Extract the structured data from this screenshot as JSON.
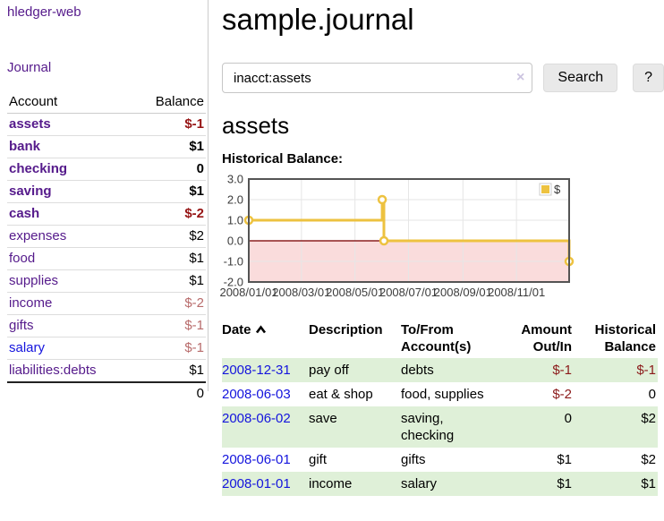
{
  "app": {
    "brand": "hledger-web",
    "nav": {
      "journal": "Journal"
    }
  },
  "sidebar": {
    "headers": {
      "account": "Account",
      "balance": "Balance"
    },
    "rows": [
      {
        "name": "assets",
        "balance": "$-1",
        "depth": 1,
        "bold": true,
        "neg": "strong",
        "link": "purple"
      },
      {
        "name": "bank",
        "balance": "$1",
        "depth": 2,
        "bold": true,
        "neg": "none",
        "link": "purple"
      },
      {
        "name": "checking",
        "balance": "0",
        "depth": 3,
        "bold": true,
        "neg": "none",
        "link": "purple"
      },
      {
        "name": "saving",
        "balance": "$1",
        "depth": 3,
        "bold": true,
        "neg": "none",
        "link": "purple"
      },
      {
        "name": "cash",
        "balance": "$-2",
        "depth": 2,
        "bold": true,
        "neg": "strong",
        "link": "purple"
      },
      {
        "name": "expenses",
        "balance": "$2",
        "depth": 1,
        "bold": false,
        "neg": "none",
        "link": "purple"
      },
      {
        "name": "food",
        "balance": "$1",
        "depth": 2,
        "bold": false,
        "neg": "none",
        "link": "purple"
      },
      {
        "name": "supplies",
        "balance": "$1",
        "depth": 2,
        "bold": false,
        "neg": "none",
        "link": "purple"
      },
      {
        "name": "income",
        "balance": "$-2",
        "depth": 1,
        "bold": false,
        "neg": "soft",
        "link": "purple"
      },
      {
        "name": "gifts",
        "balance": "$-1",
        "depth": 2,
        "bold": false,
        "neg": "soft",
        "link": "purple"
      },
      {
        "name": "salary",
        "balance": "$-1",
        "depth": 2,
        "bold": false,
        "neg": "soft",
        "link": "blue"
      },
      {
        "name": "liabilities:debts",
        "balance": "$1",
        "depth": 1,
        "bold": false,
        "neg": "none",
        "link": "purple"
      }
    ],
    "total": "0"
  },
  "header": {
    "title": "sample.journal"
  },
  "search": {
    "value": "inacct:assets",
    "clear_icon": "×",
    "button_label": "Search",
    "help_label": "?"
  },
  "account_page": {
    "heading": "assets",
    "chart_title": "Historical Balance:"
  },
  "chart_data": {
    "type": "line",
    "title": "Historical Balance:",
    "step": true,
    "series": [
      {
        "name": "$",
        "color": "#EDC240",
        "points": [
          {
            "d": "2008-01-01",
            "v": 1
          },
          {
            "d": "2008-06-01",
            "v": 2
          },
          {
            "d": "2008-06-03",
            "v": 0
          },
          {
            "d": "2008-12-31",
            "v": -1
          }
        ]
      }
    ],
    "xrange": [
      "2008-01-01",
      "2008-12-31"
    ],
    "ylim": [
      -2,
      3
    ],
    "yticks": [
      {
        "v": 3,
        "label": "3.0"
      },
      {
        "v": 2,
        "label": "2.0"
      },
      {
        "v": 1,
        "label": "1.0"
      },
      {
        "v": 0,
        "label": "0.0"
      },
      {
        "v": -1,
        "label": "-1.0"
      },
      {
        "v": -2,
        "label": "-2.0"
      }
    ],
    "xticks": [
      {
        "d": "2008-01-01",
        "label": "2008/01/01"
      },
      {
        "d": "2008-03-01",
        "label": "2008/03/01"
      },
      {
        "d": "2008-05-01",
        "label": "2008/05/01"
      },
      {
        "d": "2008-07-01",
        "label": "2008/07/01"
      },
      {
        "d": "2008-09-01",
        "label": "2008/09/01"
      },
      {
        "d": "2008-11-01",
        "label": "2008/11/01"
      }
    ],
    "grid": true,
    "legend": {
      "label": "$",
      "position": "top-right"
    },
    "colors": {
      "negative_region": "#fadcdc",
      "zero_line": "#8b2020",
      "grid_line": "#e6e6e6",
      "plot_border": "#545454"
    }
  },
  "register": {
    "headers": [
      "Date",
      "Description",
      "To/From Account(s)",
      "Amount Out/In",
      "Historical Balance"
    ],
    "sort": {
      "column": "Date",
      "direction": "asc"
    },
    "rows": [
      {
        "date": "2008-12-31",
        "description": "pay off",
        "accounts": "debts",
        "amount": "$-1",
        "balance": "$-1",
        "amount_neg": true,
        "balance_neg": true,
        "striped": true
      },
      {
        "date": "2008-06-03",
        "description": "eat & shop",
        "accounts": "food, supplies",
        "amount": "$-2",
        "balance": "0",
        "amount_neg": true,
        "balance_neg": false,
        "striped": false
      },
      {
        "date": "2008-06-02",
        "description": "save",
        "accounts": "saving, checking",
        "amount": "0",
        "balance": "$2",
        "amount_neg": false,
        "balance_neg": false,
        "striped": true
      },
      {
        "date": "2008-06-01",
        "description": "gift",
        "accounts": "gifts",
        "amount": "$1",
        "balance": "$2",
        "amount_neg": false,
        "balance_neg": false,
        "striped": false
      },
      {
        "date": "2008-01-01",
        "description": "income",
        "accounts": "salary",
        "amount": "$1",
        "balance": "$1",
        "amount_neg": false,
        "balance_neg": false,
        "striped": true
      }
    ]
  }
}
